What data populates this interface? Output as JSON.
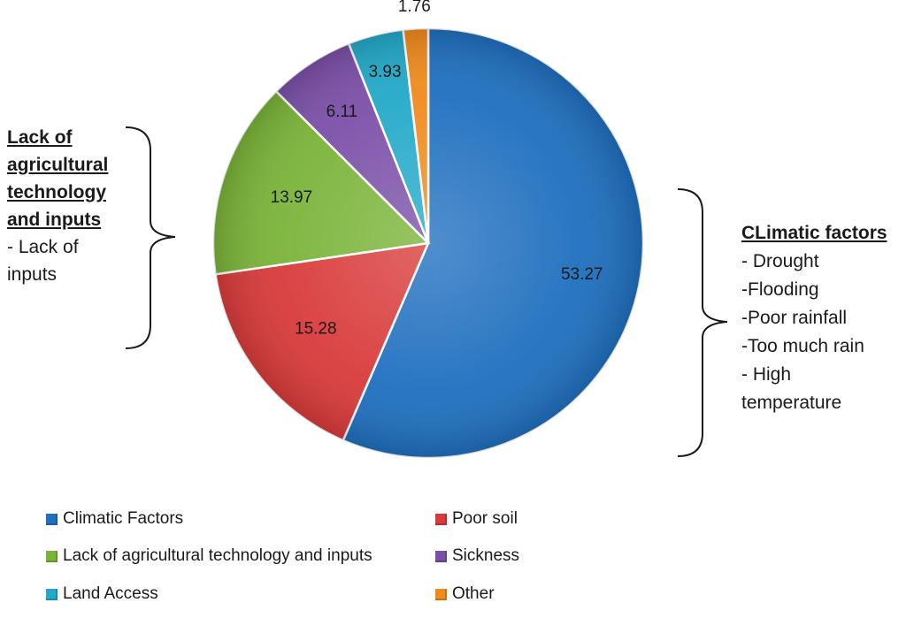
{
  "chart_data": {
    "type": "pie",
    "categories": [
      "Climatic Factors",
      "Poor soil",
      "Lack of agricultural technology and inputs",
      "Sickness",
      "Land Access",
      "Other"
    ],
    "values": [
      53.27,
      15.28,
      13.97,
      6.11,
      3.93,
      1.76
    ],
    "value_labels": [
      "53.27",
      "15.28",
      "13.97",
      "6.11",
      "3.93",
      "1.76"
    ],
    "colors": [
      "#1f6fbf",
      "#d93a3a",
      "#7ab338",
      "#7b4fa8",
      "#22a9c9",
      "#f08a1c"
    ],
    "title": "",
    "legend_position": "bottom",
    "annotations": {
      "left": {
        "heading_lines": [
          "Lack of",
          "agricultural",
          "technology",
          "and inputs"
        ],
        "items": [
          "- Lack of",
          "inputs"
        ]
      },
      "right": {
        "heading": "CLimatic factors",
        "items": [
          "- Drought",
          "-Flooding",
          "-Poor rainfall",
          "-Too much rain",
          "- High",
          "temperature"
        ]
      }
    }
  }
}
